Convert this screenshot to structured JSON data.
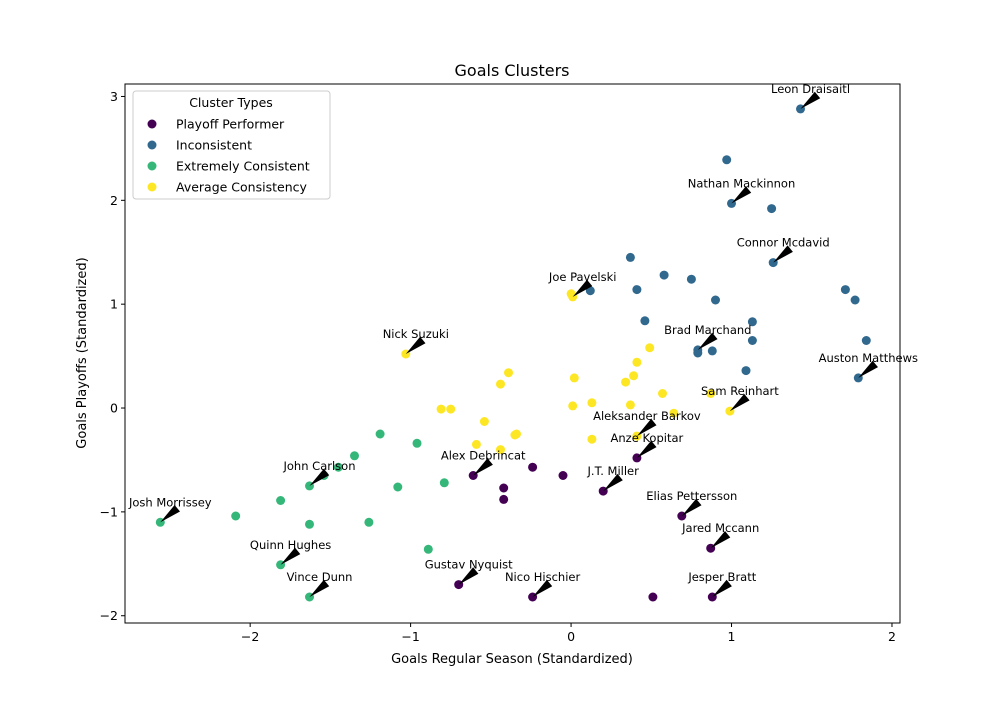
{
  "chart_data": {
    "type": "scatter",
    "title": "Goals Clusters",
    "xlabel": "Goals Regular Season (Standardized)",
    "ylabel": "Goals Playoffs (Standardized)",
    "xlim": [
      -2.78,
      2.05
    ],
    "ylim": [
      -2.07,
      3.12
    ],
    "xticks": [
      -2,
      -1,
      0,
      1,
      2
    ],
    "yticks": [
      -2,
      -1,
      0,
      1,
      2,
      3
    ],
    "grid": false,
    "legend": {
      "title": "Cluster Types",
      "placement": "upper-left"
    },
    "series": [
      {
        "name": "Playoff Performer",
        "color": "#440154",
        "points": [
          [
            -0.61,
            -0.65
          ],
          [
            -0.42,
            -0.77
          ],
          [
            -0.42,
            -0.88
          ],
          [
            -0.24,
            -0.57
          ],
          [
            -0.05,
            -0.65
          ],
          [
            0.2,
            -0.8
          ],
          [
            0.41,
            -0.48
          ],
          [
            0.69,
            -1.04
          ],
          [
            0.87,
            -1.35
          ],
          [
            -0.7,
            -1.7
          ],
          [
            -0.24,
            -1.82
          ],
          [
            0.51,
            -1.82
          ],
          [
            0.88,
            -1.82
          ]
        ]
      },
      {
        "name": "Inconsistent",
        "color": "#31688e",
        "points": [
          [
            1.43,
            2.88
          ],
          [
            0.97,
            2.39
          ],
          [
            1.0,
            1.97
          ],
          [
            1.25,
            1.92
          ],
          [
            1.26,
            1.4
          ],
          [
            0.37,
            1.45
          ],
          [
            0.58,
            1.28
          ],
          [
            0.75,
            1.24
          ],
          [
            0.12,
            1.13
          ],
          [
            0.41,
            1.14
          ],
          [
            1.71,
            1.14
          ],
          [
            1.77,
            1.04
          ],
          [
            0.9,
            1.04
          ],
          [
            0.46,
            0.84
          ],
          [
            1.13,
            0.83
          ],
          [
            1.84,
            0.65
          ],
          [
            1.13,
            0.65
          ],
          [
            0.79,
            0.56
          ],
          [
            0.79,
            0.53
          ],
          [
            0.88,
            0.55
          ],
          [
            1.09,
            0.36
          ],
          [
            1.79,
            0.29
          ]
        ]
      },
      {
        "name": "Extremely Consistent",
        "color": "#35b779",
        "points": [
          [
            -1.19,
            -0.25
          ],
          [
            -0.96,
            -0.34
          ],
          [
            -1.35,
            -0.46
          ],
          [
            -1.45,
            -0.57
          ],
          [
            -1.54,
            -0.65
          ],
          [
            -1.63,
            -0.75
          ],
          [
            -1.08,
            -0.76
          ],
          [
            -0.79,
            -0.72
          ],
          [
            -1.81,
            -0.89
          ],
          [
            -2.09,
            -1.04
          ],
          [
            -2.56,
            -1.1
          ],
          [
            -1.63,
            -1.12
          ],
          [
            -1.26,
            -1.1
          ],
          [
            -0.89,
            -1.36
          ],
          [
            -1.81,
            -1.51
          ],
          [
            -1.63,
            -1.82
          ]
        ]
      },
      {
        "name": "Average Consistency",
        "color": "#fde725",
        "points": [
          [
            -1.03,
            0.52
          ],
          [
            0.0,
            1.1
          ],
          [
            0.01,
            1.07
          ],
          [
            0.49,
            0.58
          ],
          [
            0.41,
            0.44
          ],
          [
            -0.39,
            0.34
          ],
          [
            0.39,
            0.31
          ],
          [
            0.34,
            0.25
          ],
          [
            -0.44,
            0.23
          ],
          [
            0.02,
            0.29
          ],
          [
            0.57,
            0.14
          ],
          [
            0.87,
            0.14
          ],
          [
            -0.81,
            -0.01
          ],
          [
            -0.75,
            -0.01
          ],
          [
            0.01,
            0.02
          ],
          [
            0.13,
            0.05
          ],
          [
            0.37,
            0.03
          ],
          [
            0.64,
            -0.05
          ],
          [
            0.99,
            -0.03
          ],
          [
            -0.54,
            -0.13
          ],
          [
            -0.35,
            -0.26
          ],
          [
            -0.34,
            -0.25
          ],
          [
            -0.59,
            -0.35
          ],
          [
            -0.44,
            -0.4
          ],
          [
            0.13,
            -0.3
          ],
          [
            0.41,
            -0.27
          ]
        ]
      }
    ],
    "annotations": [
      {
        "text": "Leon Draisaitl",
        "x": 1.43,
        "y": 2.88
      },
      {
        "text": "Nathan Mackinnon",
        "x": 1.0,
        "y": 1.97
      },
      {
        "text": "Connor Mcdavid",
        "x": 1.26,
        "y": 1.4
      },
      {
        "text": "Joe Pavelski",
        "x": 0.01,
        "y": 1.07
      },
      {
        "text": "Nick Suzuki",
        "x": -1.03,
        "y": 0.52
      },
      {
        "text": "Brad Marchand",
        "x": 0.79,
        "y": 0.56
      },
      {
        "text": "Auston Matthews",
        "x": 1.79,
        "y": 0.29
      },
      {
        "text": "Sam Reinhart",
        "x": 0.99,
        "y": -0.03
      },
      {
        "text": "Aleksander Barkov",
        "x": 0.41,
        "y": -0.27
      },
      {
        "text": "Anze Kopitar",
        "x": 0.41,
        "y": -0.48
      },
      {
        "text": "Alex Debrincat",
        "x": -0.61,
        "y": -0.65
      },
      {
        "text": "John Carlson",
        "x": -1.63,
        "y": -0.75
      },
      {
        "text": "J.T. Miller",
        "x": 0.2,
        "y": -0.8
      },
      {
        "text": "Elias Pettersson",
        "x": 0.69,
        "y": -1.04
      },
      {
        "text": "Josh Morrissey",
        "x": -2.56,
        "y": -1.1
      },
      {
        "text": "Jared Mccann",
        "x": 0.87,
        "y": -1.35
      },
      {
        "text": "Quinn Hughes",
        "x": -1.81,
        "y": -1.51
      },
      {
        "text": "Gustav Nyquist",
        "x": -0.7,
        "y": -1.7
      },
      {
        "text": "Vince Dunn",
        "x": -1.63,
        "y": -1.82
      },
      {
        "text": "Nico Hischier",
        "x": -0.24,
        "y": -1.82
      },
      {
        "text": "Jesper Bratt",
        "x": 0.88,
        "y": -1.82
      }
    ]
  }
}
